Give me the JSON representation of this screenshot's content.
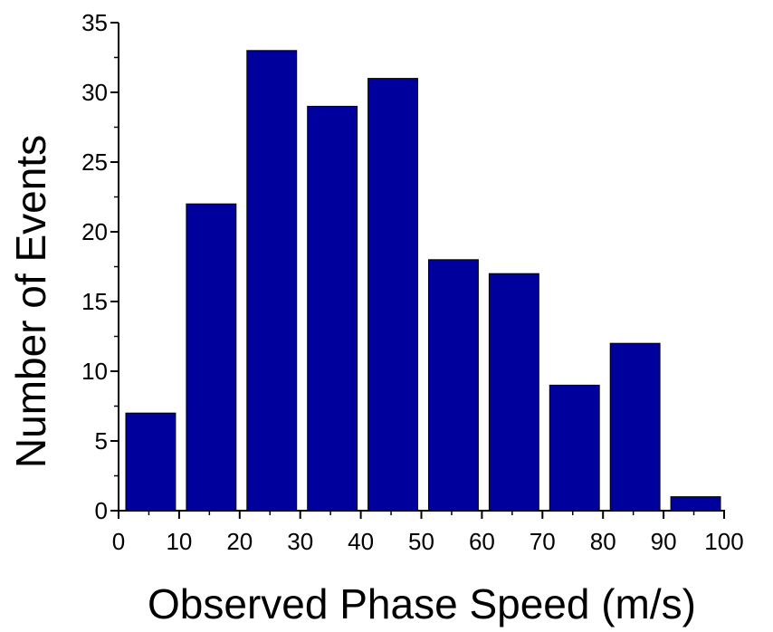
{
  "chart_data": {
    "type": "bar",
    "bin_edges": [
      0,
      10,
      20,
      30,
      40,
      50,
      60,
      70,
      80,
      90,
      100
    ],
    "values": [
      7,
      22,
      33,
      29,
      31,
      18,
      17,
      9,
      12,
      1
    ],
    "xlabel": "Observed Phase Speed (m/s)",
    "ylabel": "Number of Events",
    "xlim": [
      0,
      100
    ],
    "ylim": [
      0,
      35
    ],
    "xticks": [
      0,
      10,
      20,
      30,
      40,
      50,
      60,
      70,
      80,
      90,
      100
    ],
    "yticks": [
      0,
      5,
      10,
      15,
      20,
      25,
      30,
      35
    ],
    "grid": false,
    "bar_color": "#00009c",
    "legend": "none"
  }
}
